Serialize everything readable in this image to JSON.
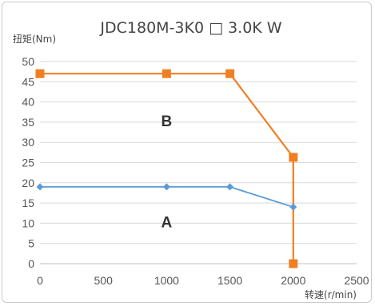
{
  "chart_data": {
    "type": "line",
    "title": "JDC180M-3K0 □ 3.0K W",
    "xlabel": "转速(r/min)",
    "ylabel": "扭矩(Nm)",
    "xlim": [
      0,
      2500
    ],
    "ylim": [
      0,
      50
    ],
    "xticks": [
      0,
      500,
      1000,
      1500,
      2000,
      2500
    ],
    "yticks": [
      0,
      5,
      10,
      15,
      20,
      25,
      30,
      35,
      40,
      45,
      50
    ],
    "grid": "horizontal",
    "series": [
      {
        "label": "B",
        "color": "#f07f22",
        "marker": "square",
        "x": [
          0,
          1000,
          1500,
          2000,
          2000
        ],
        "y": [
          47,
          47,
          47,
          26.3,
          0
        ]
      },
      {
        "label": "A",
        "color": "#5b9bd5",
        "marker": "diamond",
        "x": [
          0,
          1000,
          1500,
          2000
        ],
        "y": [
          19,
          19,
          19,
          14
        ]
      }
    ],
    "annotations": [
      {
        "text": "B",
        "x": 1000,
        "y": 34
      },
      {
        "text": "A",
        "x": 1000,
        "y": 9
      }
    ]
  }
}
